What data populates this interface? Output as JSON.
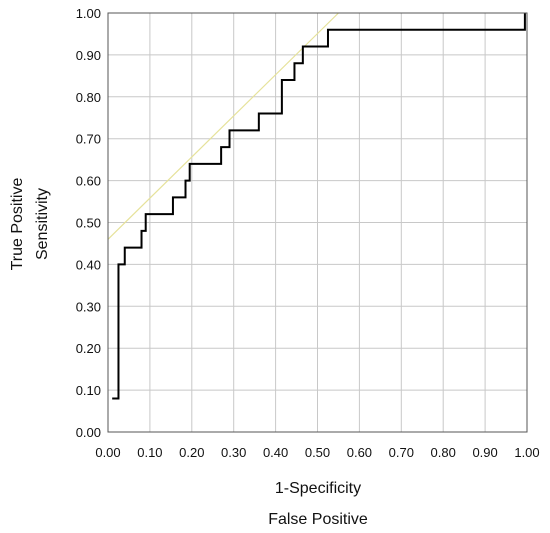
{
  "chart_data": {
    "type": "line",
    "title": "",
    "xlabel_lines": [
      "1-Specificity",
      "False Positive"
    ],
    "ylabel_lines": [
      "True Positive",
      "Sensitivity"
    ],
    "xlim": [
      0,
      1
    ],
    "ylim": [
      0,
      1
    ],
    "grid": true,
    "x_ticks": [
      "0.00",
      "0.10",
      "0.20",
      "0.30",
      "0.40",
      "0.50",
      "0.60",
      "0.70",
      "0.80",
      "0.90",
      "1.00"
    ],
    "y_ticks": [
      "0.00",
      "0.10",
      "0.20",
      "0.30",
      "0.40",
      "0.50",
      "0.60",
      "0.70",
      "0.80",
      "0.90",
      "1.00"
    ],
    "series": [
      {
        "style": "step",
        "color": "#000000",
        "points": [
          [
            0.01,
            0.08
          ],
          [
            0.025,
            0.08
          ],
          [
            0.025,
            0.4
          ],
          [
            0.04,
            0.4
          ],
          [
            0.04,
            0.44
          ],
          [
            0.08,
            0.44
          ],
          [
            0.08,
            0.48
          ],
          [
            0.09,
            0.48
          ],
          [
            0.09,
            0.52
          ],
          [
            0.155,
            0.52
          ],
          [
            0.155,
            0.56
          ],
          [
            0.185,
            0.56
          ],
          [
            0.185,
            0.6
          ],
          [
            0.195,
            0.6
          ],
          [
            0.195,
            0.64
          ],
          [
            0.27,
            0.64
          ],
          [
            0.27,
            0.68
          ],
          [
            0.29,
            0.68
          ],
          [
            0.29,
            0.72
          ],
          [
            0.36,
            0.72
          ],
          [
            0.36,
            0.76
          ],
          [
            0.415,
            0.76
          ],
          [
            0.415,
            0.84
          ],
          [
            0.445,
            0.84
          ],
          [
            0.445,
            0.88
          ],
          [
            0.465,
            0.88
          ],
          [
            0.465,
            0.92
          ],
          [
            0.525,
            0.92
          ],
          [
            0.525,
            0.96
          ],
          [
            0.995,
            0.96
          ],
          [
            0.995,
            1.0
          ]
        ]
      },
      {
        "style": "line",
        "color": "#e6e29a",
        "points": [
          [
            0.0,
            0.46
          ],
          [
            0.55,
            1.0
          ]
        ]
      }
    ]
  }
}
